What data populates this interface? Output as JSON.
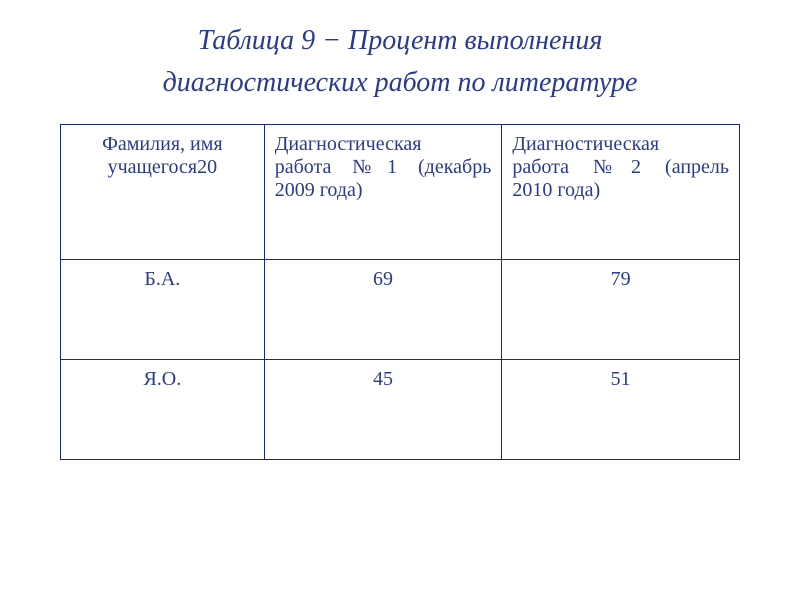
{
  "title_line1": "Таблица 9 − Процент выполнения",
  "title_line2": "диагностических работ по литературе",
  "table": {
    "columns": [
      "Фамилия, имя учащегося20",
      "Диагностическая работа №1 (декабрь 2009 года)",
      "Диагностическая работа №2 (апрель 2010 года)"
    ],
    "col2_line1": "Диагностическая",
    "col2_line2": "работа №1 (декабрь",
    "col2_line3": "2009 года)",
    "col3_line1": "Диагностическая",
    "col3_line2": "работа №2 (апрель",
    "col3_line3": "2010 года)",
    "col1_line1": "Фамилия, имя",
    "col1_line2": "учащегося20",
    "rows": [
      {
        "name": "Б.А.",
        "v1": "69",
        "v2": "79"
      },
      {
        "name": "Я.О.",
        "v1": "45",
        "v2": "51"
      }
    ]
  },
  "colors": {
    "text": "#2a3a8f",
    "border": "#1a2a7a",
    "background": "#ffffff"
  }
}
